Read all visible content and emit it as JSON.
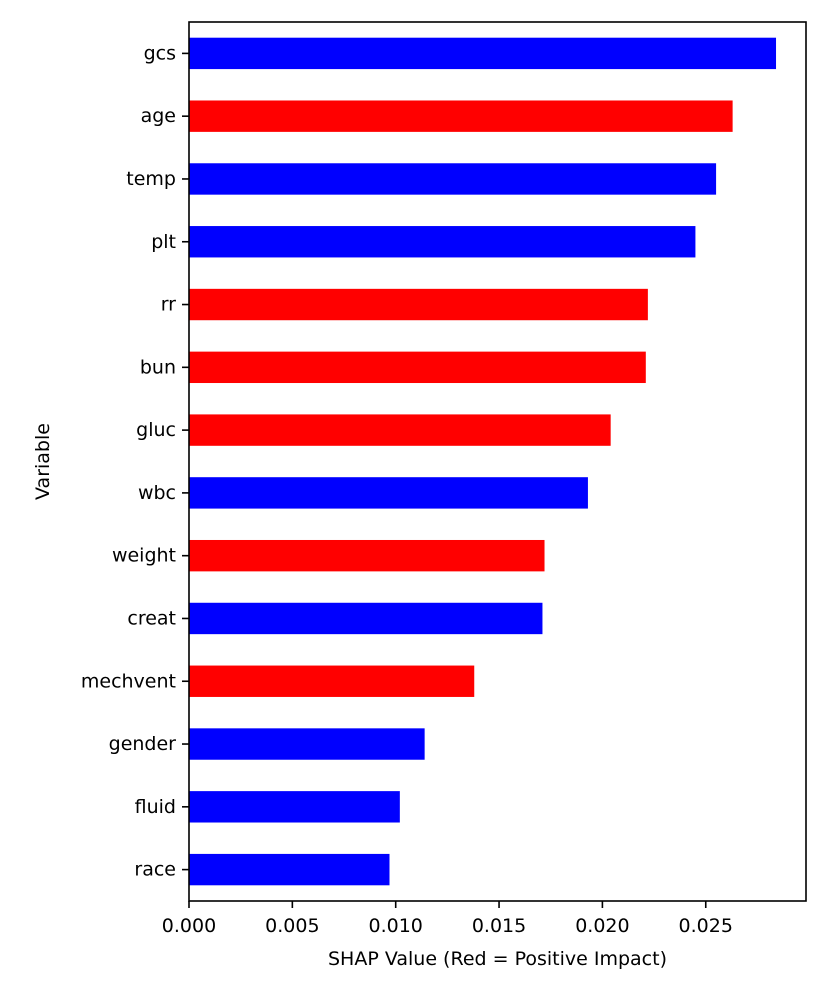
{
  "chart_data": {
    "type": "bar",
    "orientation": "horizontal",
    "title": "",
    "xlabel": "SHAP Value (Red = Positive Impact)",
    "ylabel": "Variable",
    "xlim": [
      0,
      0.02985
    ],
    "x_ticks": [
      0.0,
      0.005,
      0.01,
      0.015,
      0.02,
      0.025
    ],
    "x_tick_labels": [
      "0.000",
      "0.005",
      "0.010",
      "0.015",
      "0.020",
      "0.025"
    ],
    "grid": false,
    "legend": "none",
    "colors": {
      "positive": "#ff0000",
      "negative": "#0000ff"
    },
    "bars": [
      {
        "category": "gcs",
        "value": 0.0284,
        "impact": "negative"
      },
      {
        "category": "age",
        "value": 0.0263,
        "impact": "positive"
      },
      {
        "category": "temp",
        "value": 0.0255,
        "impact": "negative"
      },
      {
        "category": "plt",
        "value": 0.0245,
        "impact": "negative"
      },
      {
        "category": "rr",
        "value": 0.0222,
        "impact": "positive"
      },
      {
        "category": "bun",
        "value": 0.0221,
        "impact": "positive"
      },
      {
        "category": "gluc",
        "value": 0.0204,
        "impact": "positive"
      },
      {
        "category": "wbc",
        "value": 0.0193,
        "impact": "negative"
      },
      {
        "category": "weight",
        "value": 0.0172,
        "impact": "positive"
      },
      {
        "category": "creat",
        "value": 0.0171,
        "impact": "negative"
      },
      {
        "category": "mechvent",
        "value": 0.0138,
        "impact": "positive"
      },
      {
        "category": "gender",
        "value": 0.0114,
        "impact": "negative"
      },
      {
        "category": "fluid",
        "value": 0.0102,
        "impact": "negative"
      },
      {
        "category": "race",
        "value": 0.0097,
        "impact": "negative"
      }
    ]
  }
}
